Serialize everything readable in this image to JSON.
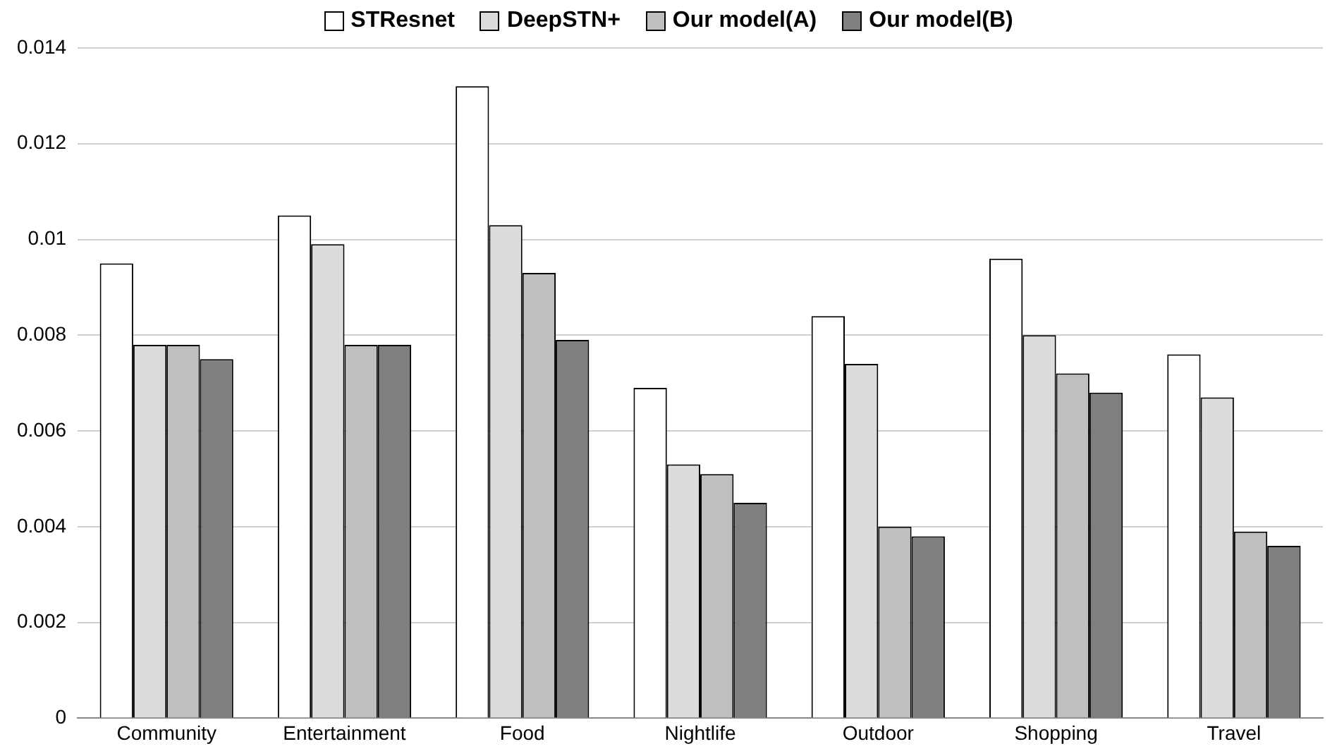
{
  "chart_data": {
    "type": "bar",
    "categories": [
      "Community",
      "Entertainment",
      "Food",
      "Nightlife",
      "Outdoor",
      "Shopping",
      "Travel"
    ],
    "series": [
      {
        "name": "STResnet",
        "color": "#ffffff",
        "values": [
          0.0095,
          0.0105,
          0.0132,
          0.0069,
          0.0084,
          0.0096,
          0.0076
        ]
      },
      {
        "name": "DeepSTN+",
        "color": "#dcdcdc",
        "values": [
          0.0078,
          0.0099,
          0.0103,
          0.0053,
          0.0074,
          0.008,
          0.0067
        ]
      },
      {
        "name": "Our model(A)",
        "color": "#bfbfbf",
        "values": [
          0.0078,
          0.0078,
          0.0093,
          0.0051,
          0.004,
          0.0072,
          0.0039
        ]
      },
      {
        "name": "Our model(B)",
        "color": "#7f7f7f",
        "values": [
          0.0075,
          0.0078,
          0.0079,
          0.0045,
          0.0038,
          0.0068,
          0.0036
        ]
      }
    ],
    "ylim": [
      0,
      0.014
    ],
    "yticks": [
      0,
      0.002,
      0.004,
      0.006,
      0.008,
      0.01,
      0.012,
      0.014
    ],
    "grid": "y",
    "legend": "top"
  }
}
